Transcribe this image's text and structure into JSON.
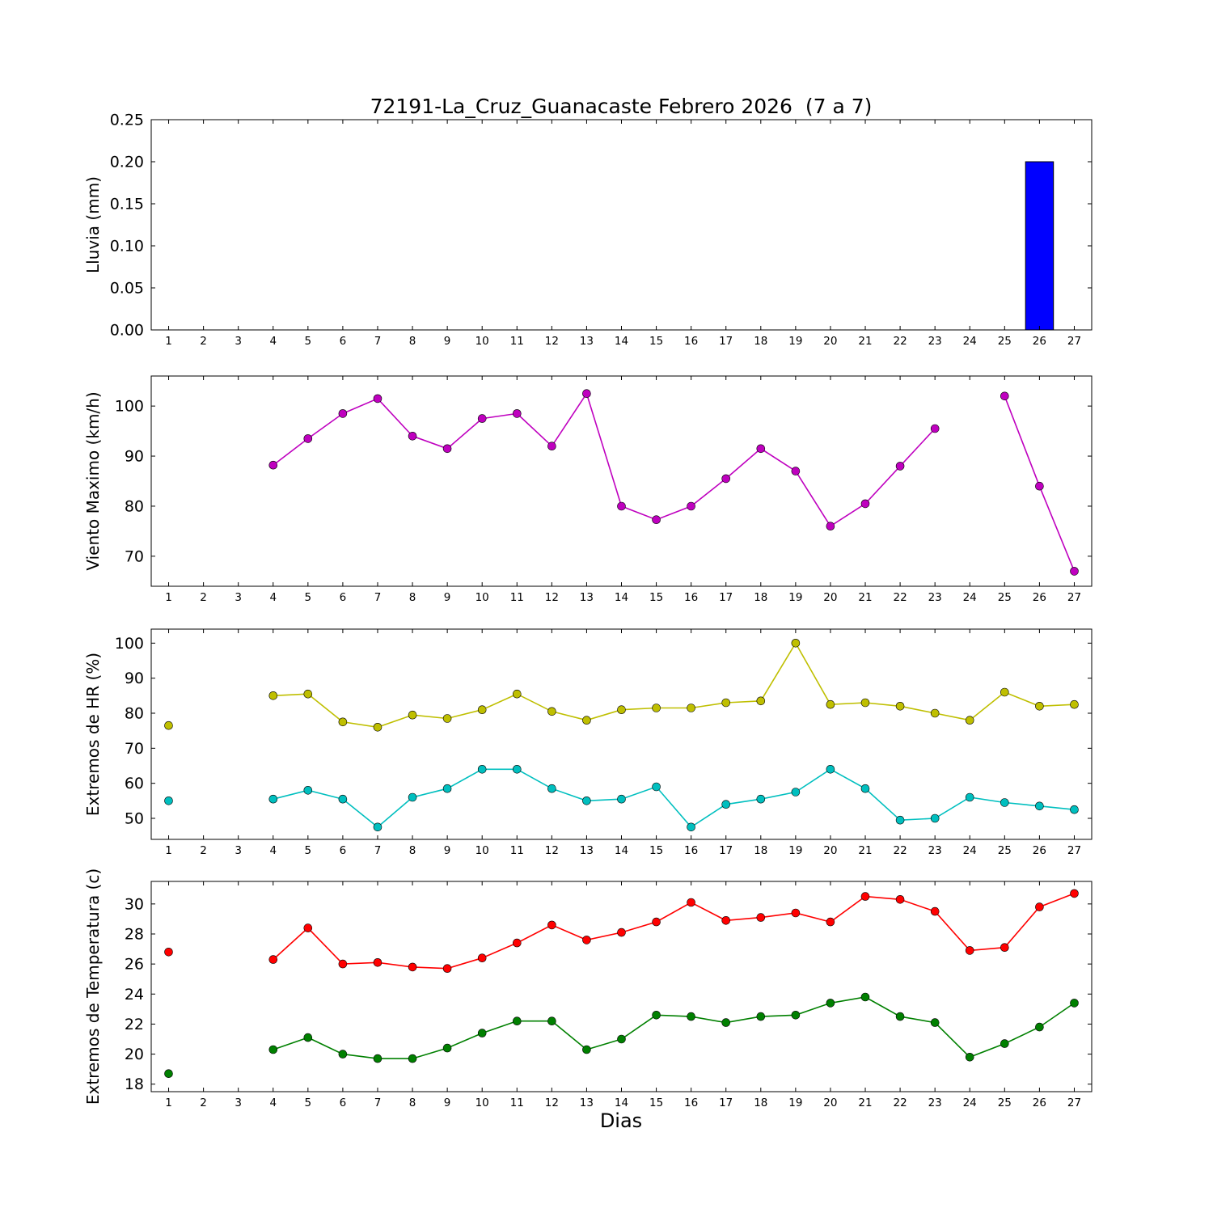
{
  "title": "72191-La_Cruz_Guanacaste Febrero 2026  (7 a 7)",
  "xlabel": "Dias",
  "background": "#ffffff",
  "days": [
    1,
    2,
    3,
    4,
    5,
    6,
    7,
    8,
    9,
    10,
    11,
    12,
    13,
    14,
    15,
    16,
    17,
    18,
    19,
    20,
    21,
    22,
    23,
    24,
    25,
    26,
    27
  ],
  "chart_data": [
    {
      "name": "lluvia",
      "type": "bar",
      "ylabel": "Lluvia (mm)",
      "ylim": [
        0,
        0.25
      ],
      "yticks": [
        0,
        0.05,
        0.1,
        0.15,
        0.2,
        0.25
      ],
      "ytick_labels": [
        "0.00",
        "0.05",
        "0.10",
        "0.15",
        "0.20",
        "0.25"
      ],
      "xlim": [
        0.5,
        27.5
      ],
      "grid": false,
      "bars": {
        "x": [
          26
        ],
        "values": [
          0.2
        ],
        "color": "#0000ff",
        "width": 0.8
      }
    },
    {
      "name": "viento-maximo",
      "type": "line",
      "ylabel": "Viento Maximo (km/h)",
      "ylim": [
        64,
        106
      ],
      "yticks": [
        70,
        80,
        90,
        100
      ],
      "xlim": [
        0.5,
        27.5
      ],
      "grid": false,
      "series": [
        {
          "name": "viento-maximo",
          "color": "#bf00bf",
          "y": [
            null,
            null,
            null,
            88.2,
            93.5,
            98.5,
            101.5,
            94,
            91.5,
            97.5,
            98.5,
            92,
            102.5,
            80,
            77.3,
            80,
            85.5,
            91.5,
            87,
            76,
            80.5,
            88,
            95.5,
            null,
            102,
            84,
            67
          ]
        }
      ]
    },
    {
      "name": "extremos-hr",
      "type": "line",
      "ylabel": "Extremos de HR (%)",
      "ylim": [
        44,
        104
      ],
      "yticks": [
        50,
        60,
        70,
        80,
        90,
        100
      ],
      "xlim": [
        0.5,
        27.5
      ],
      "grid": false,
      "series": [
        {
          "name": "hr-maxima",
          "color": "#bfbf00",
          "y": [
            76.5,
            null,
            null,
            85,
            85.5,
            77.5,
            76,
            79.5,
            78.5,
            81,
            85.5,
            80.5,
            78,
            81,
            81.5,
            81.5,
            83,
            83.5,
            100,
            82.5,
            83,
            82,
            80,
            78,
            86,
            82,
            82.5
          ]
        },
        {
          "name": "hr-minima",
          "color": "#00bfbf",
          "y": [
            55,
            null,
            null,
            55.5,
            58,
            55.5,
            47.5,
            56,
            58.5,
            64,
            64,
            58.5,
            55,
            55.5,
            59,
            47.5,
            54,
            55.5,
            57.5,
            64,
            58.5,
            49.5,
            50,
            56,
            54.5,
            53.5,
            52.5
          ]
        }
      ]
    },
    {
      "name": "extremos-temperatura",
      "type": "line",
      "ylabel": "Extremos de Temperatura (c)",
      "ylim": [
        17.5,
        31.5
      ],
      "yticks": [
        18,
        20,
        22,
        24,
        26,
        28,
        30
      ],
      "xlim": [
        0.5,
        27.5
      ],
      "grid": false,
      "series": [
        {
          "name": "temperatura-maxima",
          "color": "#ff0000",
          "y": [
            26.8,
            null,
            null,
            26.3,
            28.4,
            26.0,
            26.1,
            25.8,
            25.7,
            26.4,
            27.4,
            28.6,
            27.6,
            28.1,
            28.8,
            30.1,
            28.9,
            29.1,
            29.4,
            28.8,
            30.5,
            30.3,
            29.5,
            26.9,
            27.1,
            29.8,
            30.7
          ]
        },
        {
          "name": "temperatura-minima",
          "color": "#008000",
          "y": [
            18.7,
            null,
            null,
            20.3,
            21.1,
            20.0,
            19.7,
            19.7,
            20.4,
            21.4,
            22.2,
            22.2,
            20.3,
            21.0,
            22.6,
            22.5,
            22.1,
            22.5,
            22.6,
            23.4,
            23.8,
            22.5,
            22.1,
            19.8,
            20.7,
            21.8,
            23.4
          ]
        }
      ]
    }
  ]
}
